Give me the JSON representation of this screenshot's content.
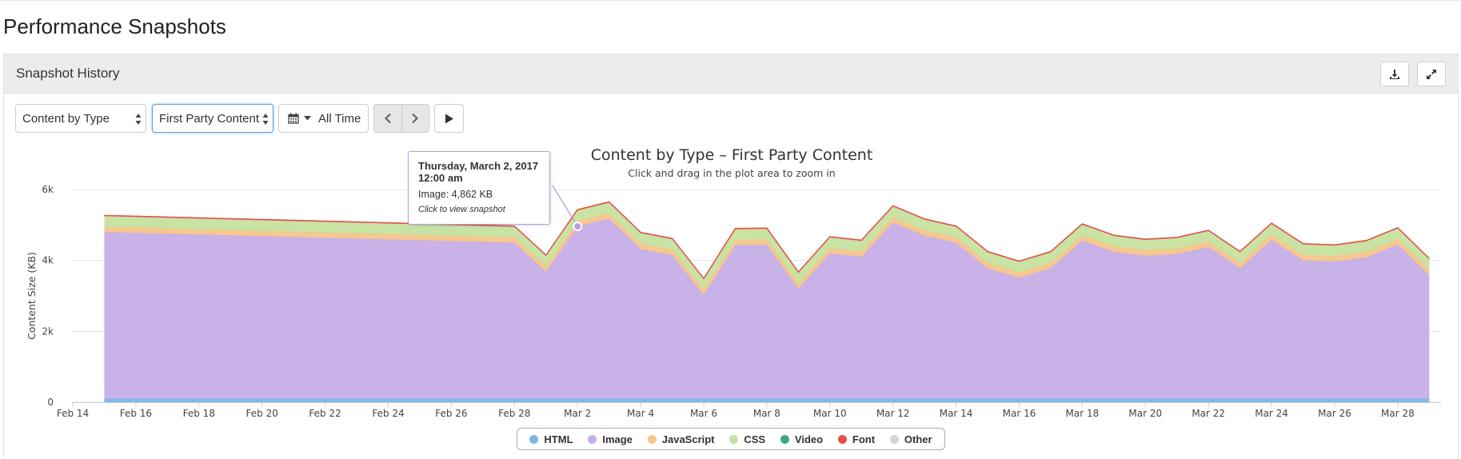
{
  "page": {
    "title": "Performance Snapshots"
  },
  "panel": {
    "title": "Snapshot History",
    "download_icon": "download-icon",
    "expand_icon": "expand-icon"
  },
  "controls": {
    "metric_select": "Content by Type",
    "party_select": "First Party Content",
    "date_range": "All Time",
    "calendar_icon": "calendar-icon",
    "prev_icon": "chevron-left-icon",
    "next_icon": "chevron-right-icon",
    "play_icon": "play-icon"
  },
  "tooltip": {
    "date": "Thursday, March 2, 2017",
    "time": "12:00 am",
    "value": "Image: 4,862 KB",
    "hint": "Click to view snapshot"
  },
  "chart_data": {
    "type": "area",
    "stacked": true,
    "title": "Content by Type – First Party Content",
    "subtitle": "Click and drag in the plot area to zoom in",
    "ylabel": "Content Size (KB)",
    "ylim": [
      0,
      6000
    ],
    "yticks": [
      0,
      2000,
      4000,
      6000
    ],
    "ytick_labels": [
      "0",
      "2k",
      "4k",
      "6k"
    ],
    "x_start": "2017-02-15",
    "xticks": [
      "Feb 14",
      "Feb 16",
      "Feb 18",
      "Feb 20",
      "Feb 22",
      "Feb 24",
      "Feb 26",
      "Feb 28",
      "Mar 2",
      "Mar 4",
      "Mar 6",
      "Mar 8",
      "Mar 10",
      "Mar 12",
      "Mar 14",
      "Mar 16",
      "Mar 18",
      "Mar 20",
      "Mar 22",
      "Mar 24",
      "Mar 26",
      "Mar 28"
    ],
    "dates": [
      "Feb 15",
      "Feb 28",
      "Mar 1",
      "Mar 2",
      "Mar 3",
      "Mar 4",
      "Mar 5",
      "Mar 6",
      "Mar 7",
      "Mar 8",
      "Mar 9",
      "Mar 10",
      "Mar 11",
      "Mar 12",
      "Mar 13",
      "Mar 14",
      "Mar 15",
      "Mar 16",
      "Mar 17",
      "Mar 18",
      "Mar 19",
      "Mar 20",
      "Mar 21",
      "Mar 22",
      "Mar 23",
      "Mar 24",
      "Mar 25",
      "Mar 26",
      "Mar 27",
      "Mar 28",
      "Mar 29"
    ],
    "legend_position": "bottom",
    "grid": true,
    "series": [
      {
        "name": "HTML",
        "color": "#7cb5ec",
        "values": [
          100,
          100,
          100,
          100,
          100,
          100,
          100,
          100,
          100,
          100,
          100,
          100,
          100,
          100,
          100,
          100,
          100,
          100,
          100,
          100,
          100,
          100,
          100,
          100,
          100,
          100,
          100,
          100,
          100,
          100,
          100
        ]
      },
      {
        "name": "Image",
        "color": "#c6aee6",
        "values": [
          4700,
          4400,
          3580,
          4862,
          5080,
          4220,
          4050,
          2920,
          4330,
          4340,
          3100,
          4100,
          4000,
          4970,
          4600,
          4400,
          3680,
          3410,
          3680,
          4460,
          4140,
          4030,
          4080,
          4280,
          3680,
          4480,
          3900,
          3870,
          3990,
          4350,
          3480
        ]
      },
      {
        "name": "JavaScript",
        "color": "#f7c48a",
        "values": [
          150,
          150,
          150,
          150,
          150,
          150,
          150,
          150,
          150,
          150,
          150,
          150,
          150,
          150,
          150,
          150,
          150,
          150,
          150,
          150,
          150,
          150,
          150,
          150,
          150,
          150,
          150,
          150,
          150,
          150,
          150
        ]
      },
      {
        "name": "CSS",
        "color": "#c5e29e",
        "values": [
          300,
          300,
          300,
          300,
          300,
          300,
          300,
          300,
          300,
          300,
          300,
          300,
          300,
          300,
          300,
          300,
          300,
          300,
          300,
          300,
          300,
          300,
          300,
          300,
          300,
          300,
          300,
          300,
          300,
          300,
          300
        ]
      },
      {
        "name": "Video",
        "color": "#3aa889",
        "values": [
          0,
          0,
          0,
          0,
          0,
          0,
          0,
          0,
          0,
          0,
          0,
          0,
          0,
          0,
          0,
          0,
          0,
          0,
          0,
          0,
          0,
          0,
          0,
          0,
          0,
          0,
          0,
          0,
          0,
          0,
          0
        ]
      },
      {
        "name": "Font",
        "color": "#e3514c",
        "values": [
          20,
          20,
          20,
          20,
          20,
          20,
          20,
          20,
          20,
          20,
          20,
          20,
          20,
          20,
          20,
          20,
          20,
          20,
          20,
          20,
          20,
          20,
          20,
          20,
          20,
          20,
          20,
          20,
          20,
          20,
          20
        ]
      },
      {
        "name": "Other",
        "color": "#d4d4d4",
        "values": [
          0,
          0,
          0,
          0,
          0,
          0,
          0,
          0,
          0,
          0,
          0,
          0,
          0,
          0,
          0,
          0,
          0,
          0,
          0,
          0,
          0,
          0,
          0,
          0,
          0,
          0,
          0,
          0,
          0,
          0,
          0
        ]
      }
    ]
  }
}
